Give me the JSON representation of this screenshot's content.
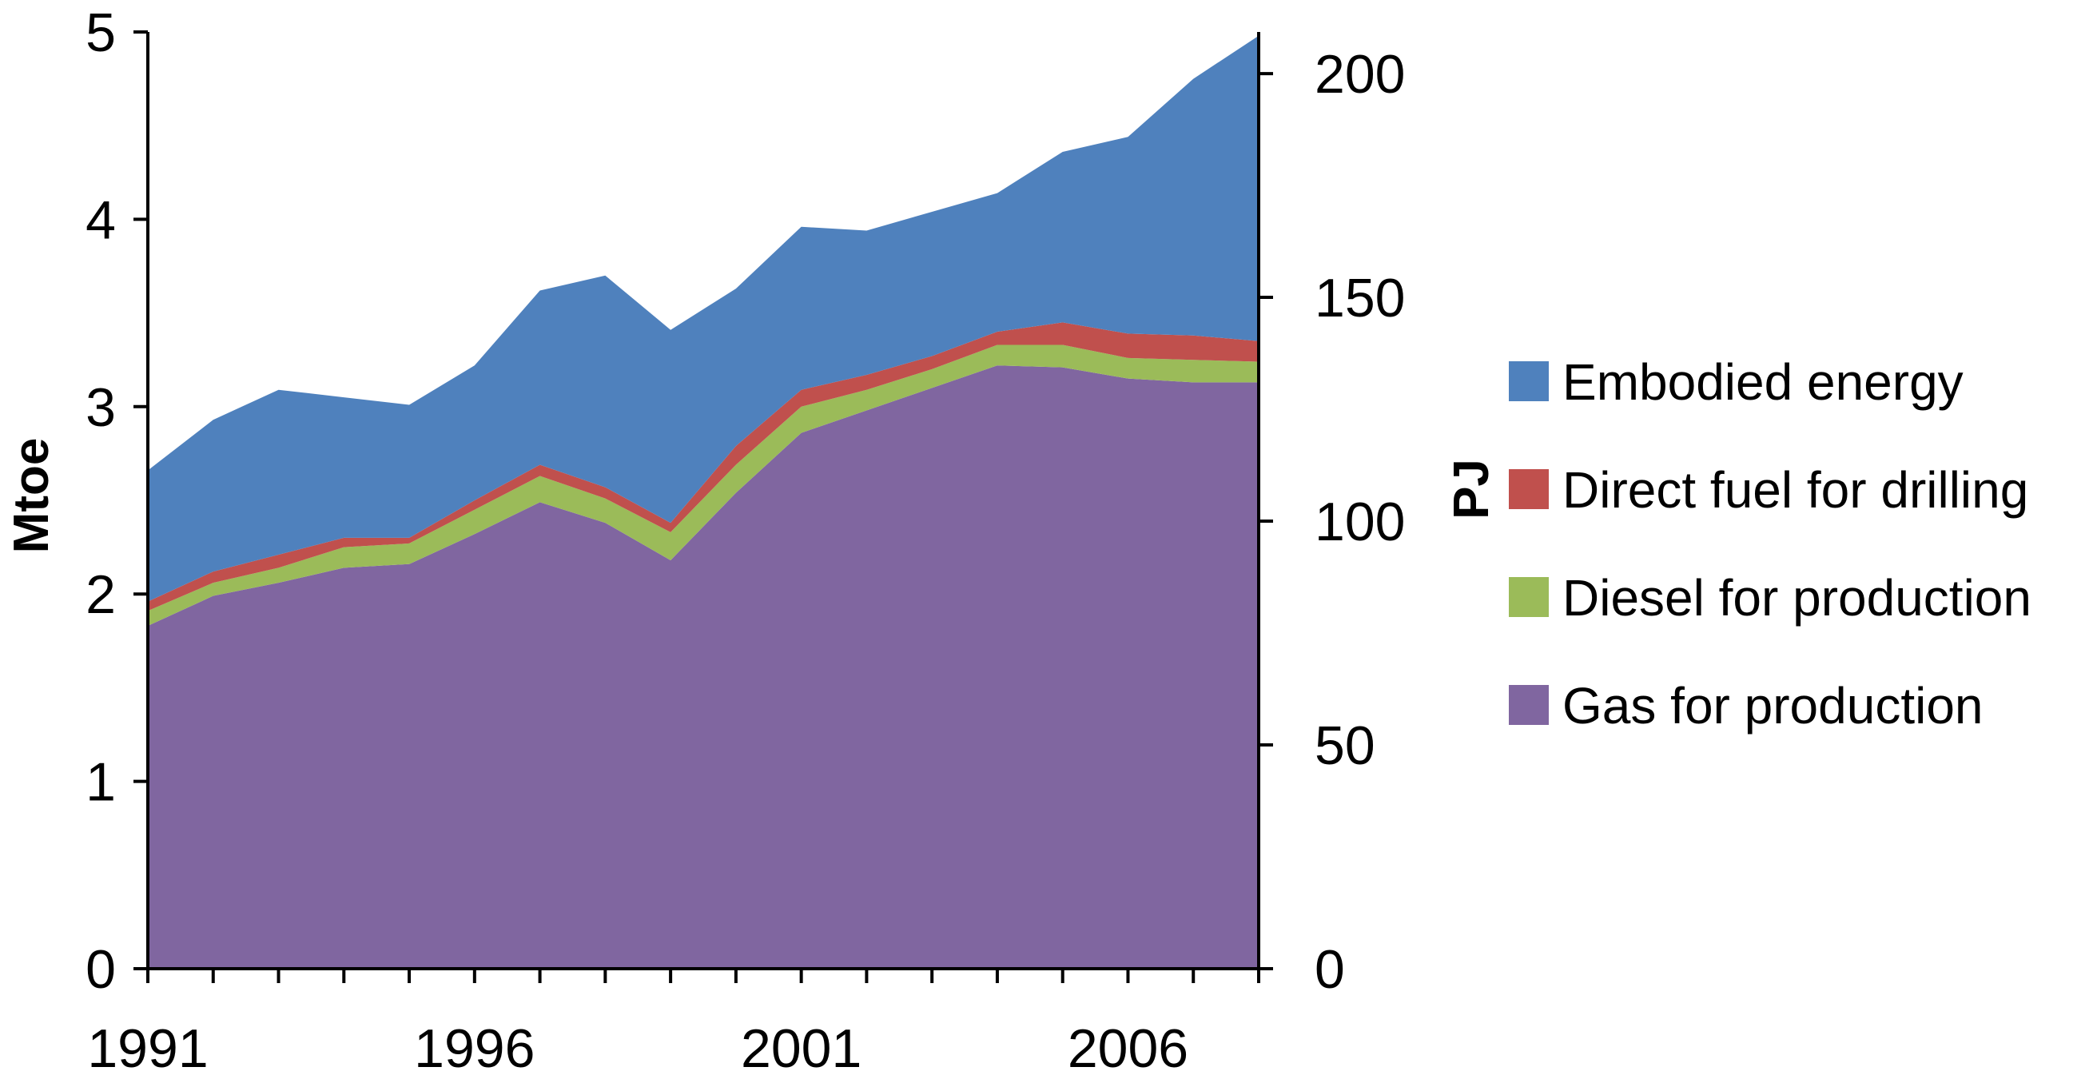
{
  "chart_data": {
    "type": "area",
    "stacked": true,
    "title": "",
    "xlabel": "",
    "ylabel": "Mtoe",
    "y2label": "PJ",
    "x": [
      1991,
      1992,
      1993,
      1994,
      1995,
      1996,
      1997,
      1998,
      1999,
      2000,
      2001,
      2002,
      2003,
      2004,
      2005,
      2006,
      2007,
      2008
    ],
    "xlim": [
      1991,
      2008
    ],
    "x_ticks": [
      1991,
      1996,
      2001,
      2006
    ],
    "x_tick_labels": [
      "1991",
      "1996",
      "2001",
      "2006"
    ],
    "ylim": [
      0,
      5
    ],
    "y_ticks": [
      0,
      1,
      2,
      3,
      4,
      5
    ],
    "y_tick_labels": [
      "0",
      "1",
      "2",
      "3",
      "4",
      "5"
    ],
    "y2lim": [
      0,
      209.3
    ],
    "y2_ticks": [
      0,
      50,
      100,
      150,
      200
    ],
    "y2_tick_labels": [
      "0",
      "50",
      "100",
      "150",
      "200"
    ],
    "legend_position": "right",
    "grid": false,
    "series": [
      {
        "name": "Gas for production",
        "color": "#8066A0",
        "values": [
          1.83,
          1.99,
          2.06,
          2.14,
          2.16,
          2.32,
          2.49,
          2.38,
          2.18,
          2.54,
          2.86,
          2.98,
          3.1,
          3.22,
          3.21,
          3.15,
          3.13,
          3.13
        ]
      },
      {
        "name": "Diesel for production",
        "color": "#9BBB59",
        "values": [
          0.08,
          0.07,
          0.08,
          0.11,
          0.11,
          0.13,
          0.14,
          0.13,
          0.15,
          0.15,
          0.14,
          0.11,
          0.1,
          0.11,
          0.12,
          0.11,
          0.12,
          0.11
        ]
      },
      {
        "name": "Direct fuel for drilling",
        "color": "#C0504D",
        "values": [
          0.05,
          0.06,
          0.07,
          0.05,
          0.03,
          0.05,
          0.06,
          0.06,
          0.05,
          0.1,
          0.09,
          0.08,
          0.07,
          0.07,
          0.12,
          0.13,
          0.13,
          0.11
        ]
      },
      {
        "name": "Embodied energy",
        "color": "#4F81BD",
        "values": [
          0.7,
          0.81,
          0.88,
          0.75,
          0.71,
          0.72,
          0.93,
          1.13,
          1.03,
          0.84,
          0.87,
          0.77,
          0.77,
          0.74,
          0.91,
          1.05,
          1.37,
          1.63
        ]
      }
    ],
    "legend_order": [
      "Embodied energy",
      "Direct fuel for drilling",
      "Diesel for production",
      "Gas for production"
    ]
  }
}
